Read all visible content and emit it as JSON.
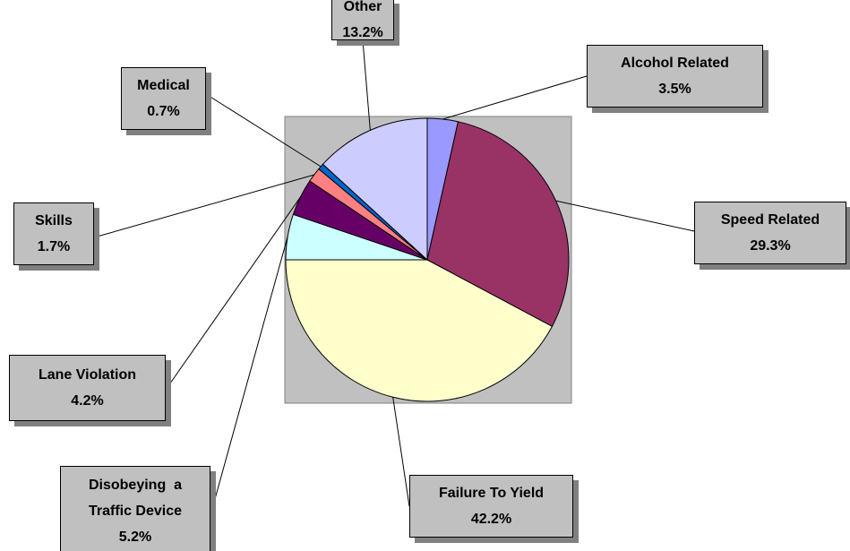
{
  "chart_data": {
    "type": "pie",
    "categories": [
      "Alcohol Related",
      "Speed Related",
      "Failure To Yield",
      "Disobeying  a Traffic Device",
      "Lane Violation",
      "Skills",
      "Medical",
      "Other"
    ],
    "values": [
      3.5,
      29.3,
      42.2,
      5.2,
      4.2,
      1.7,
      0.7,
      13.2
    ],
    "value_labels": [
      "3.5%",
      "29.3%",
      "42.2%",
      "5.2%",
      "4.2%",
      "1.7%",
      "0.7%",
      "13.2%"
    ],
    "colors": [
      "#9999ff",
      "#993366",
      "#ffffcc",
      "#ccffff",
      "#660066",
      "#ff8080",
      "#0066cc",
      "#ccccff"
    ]
  }
}
